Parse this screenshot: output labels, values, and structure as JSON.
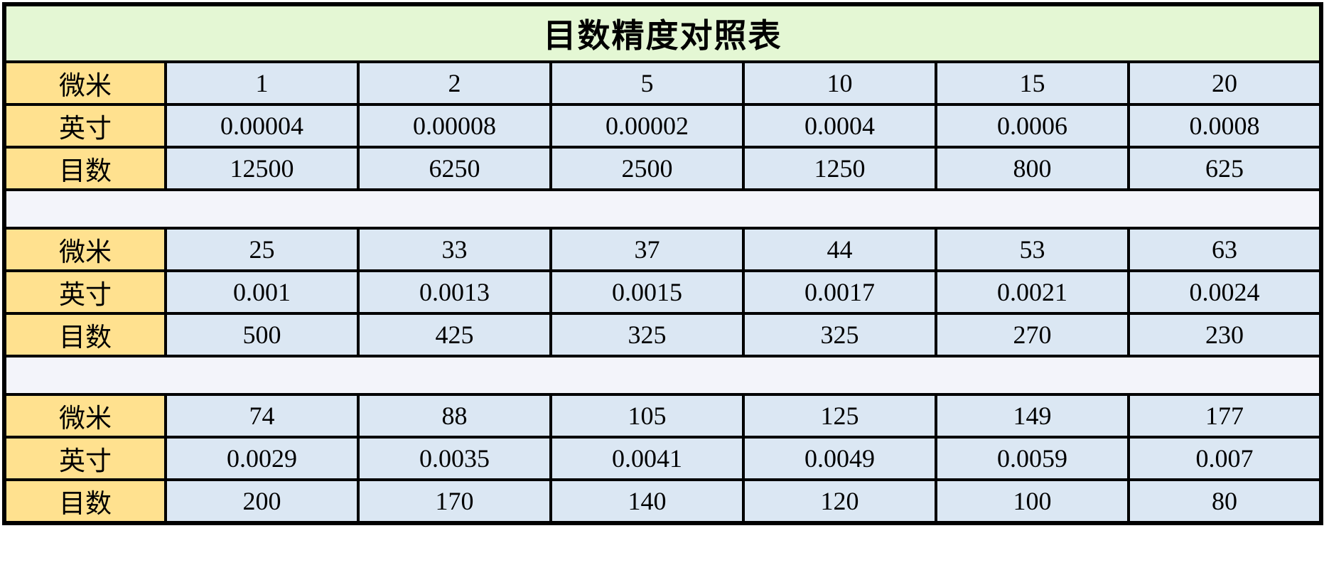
{
  "title": "目数精度对照表",
  "colors": {
    "title_bg": "#e4f7d4",
    "label_bg": "#ffe18f",
    "cell_bg": "#dbe7f3",
    "spacer_bg": "#f3f4fa",
    "border": "#000000"
  },
  "chart_data": {
    "type": "table",
    "title": "目数精度对照表",
    "row_labels": [
      "微米",
      "英寸",
      "目数"
    ],
    "blocks": [
      {
        "micron": [
          1,
          2,
          5,
          10,
          15,
          20
        ],
        "inch": [
          4e-05,
          8e-05,
          2e-05,
          0.0004,
          0.0006,
          0.0008
        ],
        "mesh": [
          12500,
          6250,
          2500,
          1250,
          800,
          625
        ]
      },
      {
        "micron": [
          25,
          33,
          37,
          44,
          53,
          63
        ],
        "inch": [
          0.001,
          0.0013,
          0.0015,
          0.0017,
          0.0021,
          0.0024
        ],
        "mesh": [
          500,
          425,
          325,
          325,
          270,
          230
        ]
      },
      {
        "micron": [
          74,
          88,
          105,
          125,
          149,
          177
        ],
        "inch": [
          0.0029,
          0.0035,
          0.0041,
          0.0049,
          0.0059,
          0.007
        ],
        "mesh": [
          200,
          170,
          140,
          120,
          100,
          80
        ]
      }
    ]
  },
  "blocks": [
    {
      "rows": [
        {
          "label": "微米",
          "cells": [
            "1",
            "2",
            "5",
            "10",
            "15",
            "20"
          ]
        },
        {
          "label": "英寸",
          "cells": [
            "0.00004",
            "0.00008",
            "0.00002",
            "0.0004",
            "0.0006",
            "0.0008"
          ]
        },
        {
          "label": "目数",
          "cells": [
            "12500",
            "6250",
            "2500",
            "1250",
            "800",
            "625"
          ]
        }
      ]
    },
    {
      "rows": [
        {
          "label": "微米",
          "cells": [
            "25",
            "33",
            "37",
            "44",
            "53",
            "63"
          ]
        },
        {
          "label": "英寸",
          "cells": [
            "0.001",
            "0.0013",
            "0.0015",
            "0.0017",
            "0.0021",
            "0.0024"
          ]
        },
        {
          "label": "目数",
          "cells": [
            "500",
            "425",
            "325",
            "325",
            "270",
            "230"
          ]
        }
      ]
    },
    {
      "rows": [
        {
          "label": "微米",
          "cells": [
            "74",
            "88",
            "105",
            "125",
            "149",
            "177"
          ]
        },
        {
          "label": "英寸",
          "cells": [
            "0.0029",
            "0.0035",
            "0.0041",
            "0.0049",
            "0.0059",
            "0.007"
          ]
        },
        {
          "label": "目数",
          "cells": [
            "200",
            "170",
            "140",
            "120",
            "100",
            "80"
          ]
        }
      ]
    }
  ]
}
